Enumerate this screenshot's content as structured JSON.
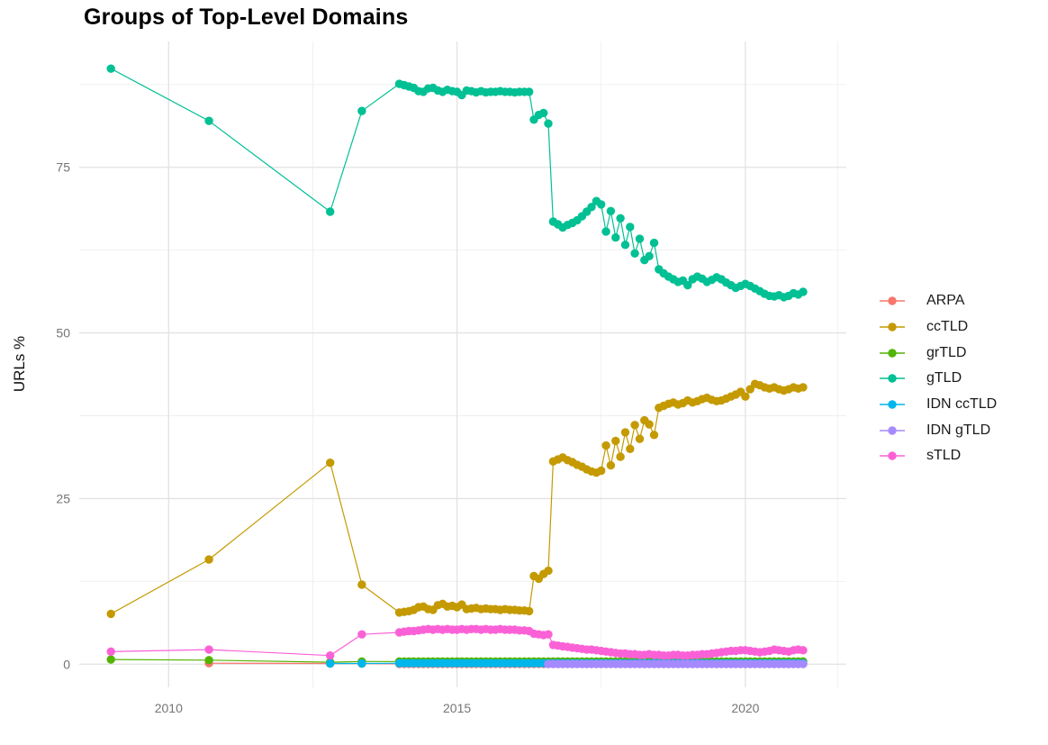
{
  "chart_data": {
    "type": "scatter",
    "title": "Groups of Top-Level Domains",
    "xlabel": "",
    "ylabel": "URLs %",
    "legend_position": "right",
    "grid": true,
    "xlim": [
      2008.45,
      2021.75
    ],
    "ylim": [
      -3.5,
      94
    ],
    "x_ticks": [
      2010,
      2015,
      2020
    ],
    "x_tick_labels": [
      "2010",
      "2015",
      "2020"
    ],
    "x_minor_gridlines": [
      2012.5,
      2017.5,
      2021.6
    ],
    "y_ticks": [
      0,
      25,
      50,
      75
    ],
    "y_tick_labels": [
      "0",
      "25",
      "50",
      "75"
    ],
    "y_minor_gridlines": [
      12.5,
      37.5,
      62.5,
      87.5
    ],
    "monthly_x": [
      2014.0,
      2014.083,
      2014.167,
      2014.25,
      2014.333,
      2014.417,
      2014.5,
      2014.583,
      2014.667,
      2014.75,
      2014.833,
      2014.917,
      2015.0,
      2015.083,
      2015.167,
      2015.25,
      2015.333,
      2015.417,
      2015.5,
      2015.583,
      2015.667,
      2015.75,
      2015.833,
      2015.917,
      2016.0,
      2016.083,
      2016.167,
      2016.25,
      2016.333,
      2016.417,
      2016.5,
      2016.583,
      2016.667,
      2016.75,
      2016.833,
      2016.917,
      2017.0,
      2017.083,
      2017.167,
      2017.25,
      2017.333,
      2017.417,
      2017.5,
      2017.583,
      2017.667,
      2017.75,
      2017.833,
      2017.917,
      2018.0,
      2018.083,
      2018.167,
      2018.25,
      2018.333,
      2018.417,
      2018.5,
      2018.583,
      2018.667,
      2018.75,
      2018.833,
      2018.917,
      2019.0,
      2019.083,
      2019.167,
      2019.25,
      2019.333,
      2019.417,
      2019.5,
      2019.583,
      2019.667,
      2019.75,
      2019.833,
      2019.917,
      2020.0,
      2020.083,
      2020.167,
      2020.25,
      2020.333,
      2020.417,
      2020.5,
      2020.583,
      2020.667,
      2020.75,
      2020.833,
      2020.917,
      2021.0
    ],
    "series": [
      {
        "name": "ARPA",
        "color": "#F8766D",
        "head_x": [
          2010.7,
          2012.8,
          2013.35
        ],
        "head_y": [
          0.15,
          0.1,
          0.1
        ],
        "monthly_y": [
          0.05,
          0.05,
          0.05,
          0.05,
          0.05,
          0.05,
          0.05,
          0.05,
          0.05,
          0.05,
          0.05,
          0.05,
          0.05,
          0.05,
          0.05,
          0.05,
          0.05,
          0.05,
          0.05,
          0.05,
          0.05,
          0.05,
          0.05,
          0.05,
          0.05,
          0.05,
          0.05,
          0.05,
          0.05,
          0.05,
          0.05,
          0.05,
          0.05,
          0.05,
          0.05,
          0.05,
          0.05,
          0.05,
          0.05,
          0.05,
          0.05,
          0.05,
          0.05,
          0.05,
          0.05,
          0.05,
          0.05,
          0.05,
          0.05,
          0.05,
          0.05,
          0.05,
          0.05,
          0.05,
          0.05,
          0.05,
          0.05,
          0.05,
          0.05,
          0.05,
          0.05,
          0.05,
          0.05,
          0.05,
          0.05,
          0.05,
          0.05,
          0.05,
          0.05,
          0.05,
          0.05,
          0.05,
          0.05,
          0.05,
          0.05,
          0.05,
          0.05,
          0.05,
          0.05,
          0.05,
          0.05,
          0.05,
          0.05,
          0.05,
          0.05
        ]
      },
      {
        "name": "ccTLD",
        "color": "#C49A00",
        "head_x": [
          2009.0,
          2010.7,
          2012.8,
          2013.35
        ],
        "head_y": [
          7.6,
          15.8,
          30.4,
          12.0
        ],
        "monthly_y": [
          7.8,
          7.9,
          8.0,
          8.2,
          8.6,
          8.7,
          8.3,
          8.2,
          8.9,
          9.1,
          8.7,
          8.8,
          8.6,
          9.0,
          8.3,
          8.4,
          8.5,
          8.3,
          8.4,
          8.3,
          8.3,
          8.2,
          8.3,
          8.2,
          8.2,
          8.1,
          8.1,
          8.0,
          13.3,
          12.9,
          13.6,
          14.1,
          30.6,
          30.9,
          31.2,
          30.8,
          30.5,
          30.1,
          29.8,
          29.4,
          29.1,
          28.9,
          29.2,
          33.0,
          30.0,
          33.7,
          31.3,
          35.0,
          32.5,
          36.1,
          34.0,
          36.8,
          36.2,
          34.6,
          38.7,
          39.0,
          39.3,
          39.5,
          39.2,
          39.4,
          39.8,
          39.5,
          39.7,
          40.0,
          40.2,
          39.9,
          39.7,
          39.8,
          40.1,
          40.4,
          40.7,
          41.1,
          40.4,
          41.5,
          42.3,
          42.1,
          41.8,
          41.6,
          41.8,
          41.5,
          41.3,
          41.5,
          41.8,
          41.6,
          41.8
        ]
      },
      {
        "name": "grTLD",
        "color": "#53B400",
        "head_x": [
          2009.0,
          2010.7,
          2012.8,
          2013.35
        ],
        "head_y": [
          0.7,
          0.6,
          0.3,
          0.4
        ],
        "monthly_y": [
          0.4,
          0.4,
          0.4,
          0.4,
          0.4,
          0.4,
          0.4,
          0.4,
          0.4,
          0.4,
          0.4,
          0.4,
          0.4,
          0.4,
          0.4,
          0.4,
          0.4,
          0.4,
          0.4,
          0.4,
          0.4,
          0.4,
          0.4,
          0.4,
          0.4,
          0.4,
          0.4,
          0.4,
          0.4,
          0.4,
          0.4,
          0.4,
          0.4,
          0.4,
          0.4,
          0.4,
          0.4,
          0.4,
          0.4,
          0.4,
          0.4,
          0.4,
          0.4,
          0.4,
          0.4,
          0.4,
          0.4,
          0.4,
          0.4,
          0.4,
          0.4,
          0.4,
          0.4,
          0.4,
          0.4,
          0.4,
          0.4,
          0.4,
          0.4,
          0.4,
          0.4,
          0.4,
          0.4,
          0.4,
          0.4,
          0.4,
          0.4,
          0.4,
          0.4,
          0.4,
          0.4,
          0.4,
          0.4,
          0.4,
          0.4,
          0.4,
          0.4,
          0.4,
          0.4,
          0.4,
          0.4,
          0.4,
          0.4,
          0.4,
          0.4
        ]
      },
      {
        "name": "gTLD",
        "color": "#00C094",
        "head_x": [
          2009.0,
          2010.7,
          2012.8,
          2013.35
        ],
        "head_y": [
          89.9,
          82.0,
          68.3,
          83.5
        ],
        "monthly_y": [
          87.6,
          87.4,
          87.2,
          87.0,
          86.5,
          86.4,
          86.9,
          87.0,
          86.6,
          86.4,
          86.7,
          86.5,
          86.4,
          85.9,
          86.6,
          86.5,
          86.3,
          86.5,
          86.3,
          86.4,
          86.4,
          86.5,
          86.4,
          86.4,
          86.3,
          86.4,
          86.4,
          86.4,
          82.2,
          82.9,
          83.2,
          81.6,
          66.8,
          66.4,
          65.9,
          66.3,
          66.6,
          67.0,
          67.6,
          68.3,
          69.0,
          69.9,
          69.4,
          65.3,
          68.4,
          64.4,
          67.3,
          63.3,
          66.0,
          62.0,
          64.2,
          61.0,
          61.6,
          63.6,
          59.6,
          59.0,
          58.5,
          58.1,
          57.7,
          57.9,
          57.2,
          58.1,
          58.5,
          58.2,
          57.7,
          58.0,
          58.4,
          58.1,
          57.6,
          57.2,
          56.8,
          57.1,
          57.4,
          57.1,
          56.7,
          56.3,
          55.9,
          55.6,
          55.5,
          55.7,
          55.4,
          55.6,
          56.0,
          55.8,
          56.2
        ]
      },
      {
        "name": "IDN ccTLD",
        "color": "#00B6EB",
        "head_x": [
          2012.8,
          2013.35
        ],
        "head_y": [
          0.1,
          0.1
        ],
        "monthly_y": [
          0.15,
          0.15,
          0.15,
          0.15,
          0.15,
          0.15,
          0.15,
          0.15,
          0.15,
          0.15,
          0.15,
          0.15,
          0.15,
          0.15,
          0.15,
          0.15,
          0.15,
          0.15,
          0.15,
          0.15,
          0.15,
          0.15,
          0.15,
          0.15,
          0.15,
          0.15,
          0.15,
          0.15,
          0.15,
          0.15,
          0.15,
          0.15,
          0.15,
          0.15,
          0.15,
          0.15,
          0.15,
          0.15,
          0.15,
          0.15,
          0.15,
          0.15,
          0.15,
          0.15,
          0.15,
          0.15,
          0.15,
          0.15,
          0.15,
          0.15,
          0.15,
          0.15,
          0.15,
          0.15,
          0.15,
          0.15,
          0.15,
          0.15,
          0.15,
          0.15,
          0.15,
          0.15,
          0.15,
          0.15,
          0.15,
          0.15,
          0.15,
          0.15,
          0.15,
          0.15,
          0.15,
          0.15,
          0.15,
          0.15,
          0.15,
          0.15,
          0.15,
          0.15,
          0.15,
          0.15,
          0.15,
          0.15,
          0.15,
          0.15,
          0.15
        ]
      },
      {
        "name": "IDN gTLD",
        "color": "#A58AFF",
        "head_x": [],
        "head_y": [],
        "monthly_y": [
          null,
          null,
          null,
          null,
          null,
          null,
          null,
          null,
          null,
          null,
          null,
          null,
          null,
          null,
          null,
          null,
          null,
          null,
          null,
          null,
          null,
          null,
          null,
          null,
          null,
          null,
          null,
          null,
          null,
          null,
          null,
          0.02,
          0.02,
          0.02,
          0.02,
          0.02,
          0.02,
          0.02,
          0.02,
          0.02,
          0.02,
          0.02,
          0.02,
          0.02,
          0.02,
          0.02,
          0.02,
          0.02,
          0.02,
          0.02,
          0.02,
          0.02,
          0.02,
          0.02,
          0.02,
          0.02,
          0.02,
          0.02,
          0.02,
          0.02,
          0.02,
          0.02,
          0.02,
          0.02,
          0.02,
          0.02,
          0.02,
          0.02,
          0.02,
          0.02,
          0.02,
          0.02,
          0.02,
          0.02,
          0.02,
          0.02,
          0.02,
          0.02,
          0.02,
          0.02,
          0.02,
          0.02,
          0.02,
          0.02,
          0.02
        ]
      },
      {
        "name": "sTLD",
        "color": "#FB61D7",
        "head_x": [
          2009.0,
          2010.7,
          2012.8,
          2013.35
        ],
        "head_y": [
          1.9,
          2.2,
          1.3,
          4.5
        ],
        "monthly_y": [
          4.8,
          4.9,
          5.0,
          5.0,
          5.1,
          5.2,
          5.3,
          5.2,
          5.3,
          5.2,
          5.3,
          5.2,
          5.2,
          5.3,
          5.2,
          5.3,
          5.3,
          5.2,
          5.3,
          5.2,
          5.2,
          5.3,
          5.2,
          5.2,
          5.2,
          5.1,
          5.1,
          5.0,
          4.6,
          4.5,
          4.4,
          4.5,
          2.9,
          2.8,
          2.7,
          2.6,
          2.5,
          2.4,
          2.3,
          2.2,
          2.2,
          2.1,
          2.0,
          1.9,
          1.8,
          1.7,
          1.6,
          1.6,
          1.5,
          1.5,
          1.4,
          1.4,
          1.5,
          1.4,
          1.4,
          1.3,
          1.3,
          1.4,
          1.4,
          1.3,
          1.3,
          1.4,
          1.4,
          1.5,
          1.5,
          1.6,
          1.7,
          1.8,
          1.9,
          2.0,
          2.0,
          2.1,
          2.1,
          2.0,
          1.9,
          1.8,
          1.9,
          2.0,
          2.2,
          2.1,
          2.0,
          1.9,
          2.1,
          2.2,
          2.1
        ]
      }
    ],
    "style": {
      "background": "#ffffff",
      "grid_major_color": "#e2e2e2",
      "grid_minor_color": "#efefef",
      "tick_label_color": "#757575",
      "point_radius": 4.7
    }
  }
}
